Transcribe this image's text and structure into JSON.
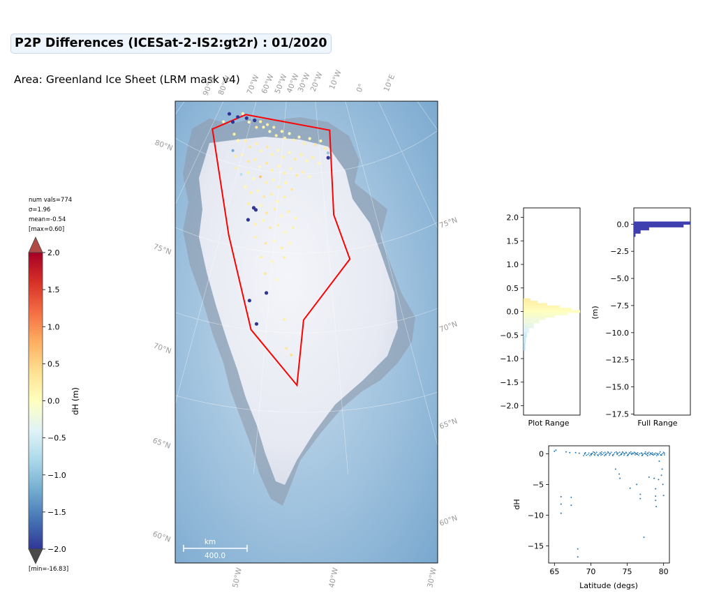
{
  "header": {
    "title": "P2P Differences (ICESat-2-IS2:gt2r) : 01/2020",
    "area": "Area: Greenland Ice Sheet (LRM mask v4)"
  },
  "stats": {
    "num_vals": "num vals=774",
    "sigma": "σ=1.96",
    "mean": "mean=-0.54",
    "max": "[max=0.60]",
    "min": "[min=-16.83]"
  },
  "colors": {
    "mask_outline": "#ff0000",
    "scatter": "#1f77b4",
    "histogram_full": "#3f3faf",
    "ocean": "#8cb6d8",
    "ice": "#eef0f6"
  },
  "chart_data": [
    {
      "type": "colorbar",
      "label": "dH (m)",
      "ylim": [
        -2.0,
        2.0
      ],
      "ticks": [
        "2.0",
        "1.5",
        "1.0",
        "0.5",
        "0.0",
        "−0.5",
        "−1.0",
        "−1.5",
        "−2.0"
      ],
      "tick_values": [
        2.0,
        1.5,
        1.0,
        0.5,
        0.0,
        -0.5,
        -1.0,
        -1.5,
        -2.0
      ],
      "colormap": "RdYlBu_r",
      "extend": "both"
    },
    {
      "type": "map",
      "projection": "polar stereographic",
      "scale_bar": {
        "unit": "km",
        "value": "400.0"
      },
      "lon_labels_top": [
        "90°W",
        "80°W",
        "70°W",
        "60°W",
        "50°W",
        "40°W",
        "30°W",
        "20°W",
        "10°W",
        "0°",
        "10°E"
      ],
      "lon_labels_bottom": [
        "50°W",
        "40°W",
        "30°W"
      ],
      "lat_labels_left": [
        "80°N",
        "75°N",
        "70°N",
        "65°N",
        "60°N"
      ],
      "lat_labels_right": [
        "75°N",
        "70°N",
        "65°N",
        "60°N"
      ],
      "mask_polygon_lonlat": [
        [
          -62.0,
          78.2
        ],
        [
          -69.5,
          76.6
        ],
        [
          -58.5,
          70.6
        ],
        [
          -52.2,
          65.0
        ],
        [
          -45.5,
          61.7
        ],
        [
          -44.6,
          65.8
        ],
        [
          -36.4,
          69.4
        ],
        [
          -38.3,
          72.3
        ],
        [
          -36.6,
          77.6
        ],
        [
          -62.0,
          78.2
        ]
      ]
    },
    {
      "type": "histogram",
      "xlabel": "Plot Range",
      "ylabel": "",
      "ylim": [
        -2.2,
        2.2
      ],
      "yticks": [
        "2.0",
        "1.5",
        "1.0",
        "0.5",
        "0.0",
        "−0.5",
        "−1.0",
        "−1.5",
        "−2.0"
      ],
      "ytick_values": [
        2.0,
        1.5,
        1.0,
        0.5,
        0.0,
        -0.5,
        -1.0,
        -1.5,
        -2.0
      ],
      "bins": [
        {
          "y": 0.25,
          "count": 0.12
        },
        {
          "y": 0.2,
          "count": 0.25
        },
        {
          "y": 0.15,
          "count": 0.42
        },
        {
          "y": 0.1,
          "count": 0.65
        },
        {
          "y": 0.05,
          "count": 0.85
        },
        {
          "y": 0.0,
          "count": 1.0
        },
        {
          "y": -0.05,
          "count": 0.78
        },
        {
          "y": -0.1,
          "count": 0.55
        },
        {
          "y": -0.15,
          "count": 0.38
        },
        {
          "y": -0.2,
          "count": 0.28
        },
        {
          "y": -0.3,
          "count": 0.18
        },
        {
          "y": -0.4,
          "count": 0.1
        },
        {
          "y": -0.5,
          "count": 0.06
        },
        {
          "y": -0.6,
          "count": 0.04
        },
        {
          "y": -0.75,
          "count": 0.03
        }
      ]
    },
    {
      "type": "histogram",
      "xlabel": "Full Range",
      "ylabel": "(m)",
      "ylim": [
        -17.6,
        1.5
      ],
      "yticks": [
        "0.0",
        "−2.5",
        "−5.0",
        "−7.5",
        "−10.0",
        "−12.5",
        "−15.0",
        "−17.5"
      ],
      "ytick_values": [
        0.0,
        -2.5,
        -5.0,
        -7.5,
        -10.0,
        -12.5,
        -15.0,
        -17.5
      ],
      "bins": [
        {
          "y": 0.1,
          "count": 1.0
        },
        {
          "y": -0.15,
          "count": 0.88
        },
        {
          "y": -0.4,
          "count": 0.27
        },
        {
          "y": -0.7,
          "count": 0.12
        },
        {
          "y": -1.0,
          "count": 0.03
        }
      ]
    },
    {
      "type": "scatter",
      "xlabel": "Latitude (degs)",
      "ylabel": "dH",
      "xlim": [
        64.2,
        80.8
      ],
      "ylim": [
        -17.8,
        1.3
      ],
      "xticks": [
        "65",
        "70",
        "75",
        "80"
      ],
      "xtick_values": [
        65,
        70,
        75,
        80
      ],
      "yticks": [
        "0",
        "−5",
        "−10",
        "−15"
      ],
      "ytick_values": [
        0,
        -5,
        -10,
        -15
      ],
      "points": [
        {
          "x": 65.0,
          "y": 0.4
        },
        {
          "x": 65.2,
          "y": 0.6
        },
        {
          "x": 65.9,
          "y": -7.0
        },
        {
          "x": 65.9,
          "y": -8.2
        },
        {
          "x": 65.9,
          "y": -9.7
        },
        {
          "x": 66.6,
          "y": 0.3
        },
        {
          "x": 67.1,
          "y": 0.2
        },
        {
          "x": 67.3,
          "y": -7.1
        },
        {
          "x": 67.3,
          "y": -8.4
        },
        {
          "x": 67.9,
          "y": 0.2
        },
        {
          "x": 68.2,
          "y": -15.5
        },
        {
          "x": 68.2,
          "y": -16.8
        },
        {
          "x": 68.4,
          "y": 0.1
        },
        {
          "x": 69.2,
          "y": 0.1
        },
        {
          "x": 70.1,
          "y": 0.0
        },
        {
          "x": 70.5,
          "y": 0.2
        },
        {
          "x": 71.4,
          "y": 0.0
        },
        {
          "x": 72.0,
          "y": -0.1
        },
        {
          "x": 72.6,
          "y": 0.0
        },
        {
          "x": 73.0,
          "y": -0.2
        },
        {
          "x": 73.4,
          "y": -2.5
        },
        {
          "x": 73.6,
          "y": 0.1
        },
        {
          "x": 73.9,
          "y": -3.3
        },
        {
          "x": 74.0,
          "y": -4.0
        },
        {
          "x": 74.2,
          "y": -0.1
        },
        {
          "x": 74.6,
          "y": 0.0
        },
        {
          "x": 75.1,
          "y": -0.2
        },
        {
          "x": 75.4,
          "y": -5.6
        },
        {
          "x": 75.6,
          "y": 0.0
        },
        {
          "x": 76.1,
          "y": 0.1
        },
        {
          "x": 76.3,
          "y": -5.0
        },
        {
          "x": 76.4,
          "y": -0.1
        },
        {
          "x": 76.8,
          "y": -6.6
        },
        {
          "x": 76.8,
          "y": -7.3
        },
        {
          "x": 77.0,
          "y": 0.1
        },
        {
          "x": 77.1,
          "y": -0.2
        },
        {
          "x": 77.3,
          "y": -13.6
        },
        {
          "x": 77.5,
          "y": 0.0
        },
        {
          "x": 77.8,
          "y": -0.3
        },
        {
          "x": 78.0,
          "y": -3.8
        },
        {
          "x": 78.2,
          "y": 0.1
        },
        {
          "x": 78.5,
          "y": -0.1
        },
        {
          "x": 78.7,
          "y": -4.0
        },
        {
          "x": 78.9,
          "y": -5.7
        },
        {
          "x": 78.9,
          "y": -6.9
        },
        {
          "x": 78.9,
          "y": -7.6
        },
        {
          "x": 79.0,
          "y": -8.6
        },
        {
          "x": 79.1,
          "y": 0.0
        },
        {
          "x": 79.3,
          "y": -4.2
        },
        {
          "x": 79.4,
          "y": -1.2
        },
        {
          "x": 79.6,
          "y": -0.2
        },
        {
          "x": 79.7,
          "y": -3.5
        },
        {
          "x": 79.8,
          "y": -2.5
        },
        {
          "x": 79.9,
          "y": -5.0
        },
        {
          "x": 80.0,
          "y": -6.8
        },
        {
          "x": 80.1,
          "y": 0.1
        }
      ]
    }
  ],
  "map_points": [
    {
      "lon": -67.5,
      "lat": 77.3,
      "dh": 0.1
    },
    {
      "lon": -66.8,
      "lat": 77.9,
      "dh": -2.0
    },
    {
      "lon": -65.0,
      "lat": 77.5,
      "dh": -2.0
    },
    {
      "lon": -64.1,
      "lat": 77.9,
      "dh": -2.0
    },
    {
      "lon": -63.0,
      "lat": 78.2,
      "dh": 0.2
    },
    {
      "lon": -61.5,
      "lat": 78.0,
      "dh": -2.0
    },
    {
      "lon": -60.5,
      "lat": 77.8,
      "dh": 0.1
    },
    {
      "lon": -59.0,
      "lat": 78.0,
      "dh": -2.0
    },
    {
      "lon": -58.0,
      "lat": 77.6,
      "dh": 0.3
    },
    {
      "lon": -57.2,
      "lat": 78.0,
      "dh": 0.2
    },
    {
      "lon": -56.0,
      "lat": 77.7,
      "dh": 0.1
    },
    {
      "lon": -55.0,
      "lat": 77.9,
      "dh": 0.2
    },
    {
      "lon": -54.0,
      "lat": 77.5,
      "dh": 0.1
    },
    {
      "lon": -53.0,
      "lat": 77.8,
      "dh": 0.3
    },
    {
      "lon": -52.0,
      "lat": 77.3,
      "dh": 0.2
    },
    {
      "lon": -50.5,
      "lat": 77.6,
      "dh": 0.1
    },
    {
      "lon": -49.5,
      "lat": 77.2,
      "dh": 0.2
    },
    {
      "lon": -48.3,
      "lat": 77.5,
      "dh": 0.0
    },
    {
      "lon": -47.0,
      "lat": 77.1,
      "dh": 0.2
    },
    {
      "lon": -45.5,
      "lat": 77.3,
      "dh": 0.1
    },
    {
      "lon": -44.0,
      "lat": 76.9,
      "dh": 0.2
    },
    {
      "lon": -42.5,
      "lat": 77.2,
      "dh": 0.1
    },
    {
      "lon": -41.0,
      "lat": 76.8,
      "dh": 0.3
    },
    {
      "lon": -39.5,
      "lat": 77.0,
      "dh": 0.1
    },
    {
      "lon": -38.5,
      "lat": 76.5,
      "dh": 0.2
    },
    {
      "lon": -38.0,
      "lat": 75.9,
      "dh": -2.0
    },
    {
      "lon": -37.9,
      "lat": 76.2,
      "dh": -1.0
    },
    {
      "lon": -63.5,
      "lat": 76.8,
      "dh": 0.2
    },
    {
      "lon": -62.0,
      "lat": 76.5,
      "dh": 0.1
    },
    {
      "lon": -60.0,
      "lat": 76.6,
      "dh": 0.2
    },
    {
      "lon": -58.5,
      "lat": 76.3,
      "dh": 0.3
    },
    {
      "lon": -57.0,
      "lat": 76.6,
      "dh": 0.2
    },
    {
      "lon": -55.5,
      "lat": 76.2,
      "dh": 0.1
    },
    {
      "lon": -54.0,
      "lat": 76.5,
      "dh": 0.3
    },
    {
      "lon": -52.5,
      "lat": 76.1,
      "dh": 0.2
    },
    {
      "lon": -51.0,
      "lat": 76.4,
      "dh": 0.1
    },
    {
      "lon": -49.5,
      "lat": 76.0,
      "dh": 0.2
    },
    {
      "lon": -48.0,
      "lat": 76.3,
      "dh": 0.1
    },
    {
      "lon": -46.5,
      "lat": 75.9,
      "dh": 0.3
    },
    {
      "lon": -45.0,
      "lat": 76.2,
      "dh": 0.2
    },
    {
      "lon": -43.5,
      "lat": 75.8,
      "dh": 0.1
    },
    {
      "lon": -42.0,
      "lat": 76.0,
      "dh": 0.2
    },
    {
      "lon": -40.5,
      "lat": 75.6,
      "dh": 0.1
    },
    {
      "lon": -62.5,
      "lat": 75.8,
      "dh": -1.2
    },
    {
      "lon": -61.5,
      "lat": 75.5,
      "dh": 0.2
    },
    {
      "lon": -60.0,
      "lat": 75.7,
      "dh": 0.1
    },
    {
      "lon": -58.0,
      "lat": 75.4,
      "dh": 0.3
    },
    {
      "lon": -56.5,
      "lat": 75.6,
      "dh": 0.2
    },
    {
      "lon": -55.0,
      "lat": 75.2,
      "dh": 0.1
    },
    {
      "lon": -53.5,
      "lat": 75.5,
      "dh": 0.3
    },
    {
      "lon": -52.0,
      "lat": 75.1,
      "dh": 0.2
    },
    {
      "lon": -50.5,
      "lat": 75.4,
      "dh": 0.1
    },
    {
      "lon": -49.0,
      "lat": 75.0,
      "dh": 0.2
    },
    {
      "lon": -47.5,
      "lat": 75.3,
      "dh": 0.1
    },
    {
      "lon": -46.0,
      "lat": 74.9,
      "dh": 0.3
    },
    {
      "lon": -44.5,
      "lat": 75.1,
      "dh": 0.2
    },
    {
      "lon": -43.0,
      "lat": 74.8,
      "dh": 0.1
    },
    {
      "lon": -60.5,
      "lat": 74.8,
      "dh": 0.2
    },
    {
      "lon": -59.0,
      "lat": 74.5,
      "dh": -0.7
    },
    {
      "lon": -57.5,
      "lat": 74.7,
      "dh": 0.2
    },
    {
      "lon": -56.0,
      "lat": 74.4,
      "dh": 0.1
    },
    {
      "lon": -54.5,
      "lat": 74.6,
      "dh": 0.6
    },
    {
      "lon": -53.0,
      "lat": 74.3,
      "dh": 0.2
    },
    {
      "lon": -51.5,
      "lat": 74.5,
      "dh": 0.1
    },
    {
      "lon": -50.0,
      "lat": 74.1,
      "dh": 0.2
    },
    {
      "lon": -48.5,
      "lat": 74.4,
      "dh": 0.1
    },
    {
      "lon": -47.0,
      "lat": 74.0,
      "dh": 0.3
    },
    {
      "lon": -57.5,
      "lat": 73.8,
      "dh": 0.1
    },
    {
      "lon": -56.0,
      "lat": 73.5,
      "dh": 0.2
    },
    {
      "lon": -54.5,
      "lat": 73.7,
      "dh": 0.1
    },
    {
      "lon": -53.0,
      "lat": 73.4,
      "dh": 0.3
    },
    {
      "lon": -51.5,
      "lat": 73.6,
      "dh": 0.2
    },
    {
      "lon": -50.0,
      "lat": 73.2,
      "dh": 0.1
    },
    {
      "lon": -48.5,
      "lat": 73.5,
      "dh": 0.2
    },
    {
      "lon": -56.0,
      "lat": 72.8,
      "dh": 0.2
    },
    {
      "lon": -54.8,
      "lat": 72.6,
      "dh": -2.0
    },
    {
      "lon": -54.3,
      "lat": 72.5,
      "dh": -2.0
    },
    {
      "lon": -53.5,
      "lat": 72.8,
      "dh": 0.1
    },
    {
      "lon": -52.0,
      "lat": 72.4,
      "dh": 0.3
    },
    {
      "lon": -50.5,
      "lat": 72.7,
      "dh": 0.2
    },
    {
      "lon": -49.0,
      "lat": 72.3,
      "dh": 0.1
    },
    {
      "lon": -47.5,
      "lat": 72.6,
      "dh": 0.2
    },
    {
      "lon": -46.0,
      "lat": 72.2,
      "dh": 0.1
    },
    {
      "lon": -55.5,
      "lat": 71.8,
      "dh": -2.0
    },
    {
      "lon": -54.0,
      "lat": 71.6,
      "dh": 0.2
    },
    {
      "lon": -52.5,
      "lat": 71.9,
      "dh": 0.1
    },
    {
      "lon": -51.0,
      "lat": 71.5,
      "dh": 0.3
    },
    {
      "lon": -49.5,
      "lat": 71.7,
      "dh": 0.2
    },
    {
      "lon": -48.0,
      "lat": 71.3,
      "dh": 0.1
    },
    {
      "lon": -46.5,
      "lat": 71.6,
      "dh": 0.2
    },
    {
      "lon": -53.5,
      "lat": 70.8,
      "dh": 0.2
    },
    {
      "lon": -51.5,
      "lat": 70.5,
      "dh": 0.3
    },
    {
      "lon": -50.0,
      "lat": 70.7,
      "dh": 0.1
    },
    {
      "lon": -48.5,
      "lat": 70.3,
      "dh": 0.2
    },
    {
      "lon": -47.0,
      "lat": 70.6,
      "dh": 0.1
    },
    {
      "lon": -52.0,
      "lat": 69.6,
      "dh": 0.2
    },
    {
      "lon": -50.0,
      "lat": 69.4,
      "dh": 0.1
    },
    {
      "lon": -48.0,
      "lat": 69.7,
      "dh": 0.2
    },
    {
      "lon": -51.0,
      "lat": 68.6,
      "dh": 0.3
    },
    {
      "lon": -49.0,
      "lat": 68.3,
      "dh": 0.1
    },
    {
      "lon": -50.5,
      "lat": 67.4,
      "dh": -2.0
    },
    {
      "lon": -53.0,
      "lat": 66.8,
      "dh": -2.0
    },
    {
      "lon": -51.5,
      "lat": 65.4,
      "dh": -2.0
    },
    {
      "lon": -47.5,
      "lat": 65.8,
      "dh": 0.2
    },
    {
      "lon": -47.0,
      "lat": 64.0,
      "dh": 0.3
    },
    {
      "lon": -46.3,
      "lat": 63.6,
      "dh": 0.4
    }
  ]
}
